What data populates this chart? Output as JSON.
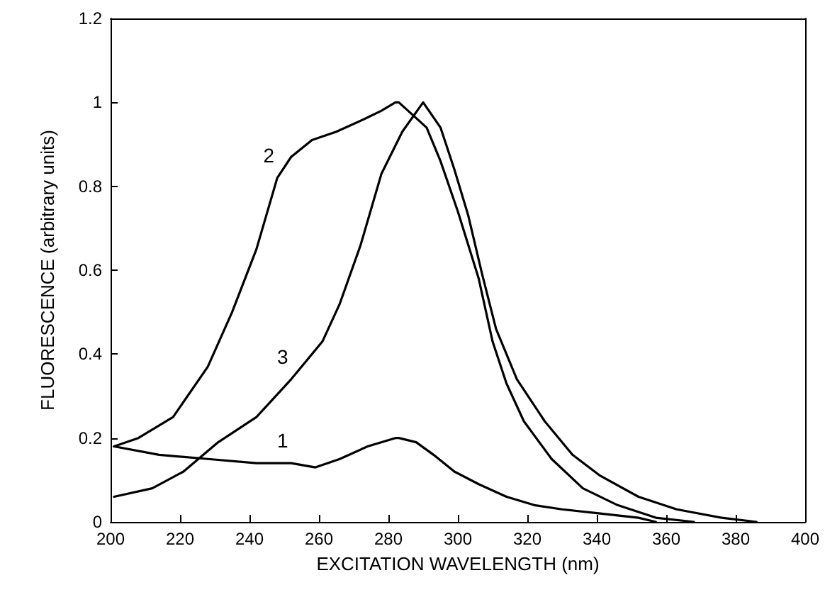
{
  "chart_data": {
    "type": "line",
    "xlabel": "EXCITATION WAVELENGTH (nm)",
    "ylabel": "FLUORESCENCE (arbitrary units)",
    "xlim": [
      200,
      400
    ],
    "xticks": [
      200,
      220,
      240,
      260,
      280,
      300,
      320,
      340,
      360,
      380,
      400
    ],
    "ylim": [
      0,
      1.2
    ],
    "yticks": [
      0,
      0.2,
      0.4,
      0.6,
      0.8,
      1,
      1.2
    ],
    "grid": false,
    "marker": "none",
    "line_style": "solid",
    "series": [
      {
        "name": "1",
        "color": "#000000",
        "x": [
          201,
          214,
          228,
          242,
          252,
          259,
          266,
          274,
          282,
          283,
          288,
          293,
          299,
          306,
          314,
          322,
          330,
          341,
          352,
          357
        ],
        "values": [
          0.18,
          0.16,
          0.15,
          0.14,
          0.14,
          0.13,
          0.15,
          0.18,
          0.2,
          0.2,
          0.19,
          0.16,
          0.12,
          0.09,
          0.06,
          0.04,
          0.03,
          0.02,
          0.01,
          0
        ]
      },
      {
        "name": "2",
        "color": "#000000",
        "x": [
          201,
          208,
          218,
          228,
          235,
          242,
          248,
          252,
          258,
          265,
          273,
          278,
          282,
          283,
          291,
          295,
          300,
          306,
          310,
          314,
          319,
          327,
          336,
          346,
          357,
          368
        ],
        "values": [
          0.18,
          0.2,
          0.25,
          0.37,
          0.5,
          0.65,
          0.82,
          0.87,
          0.91,
          0.93,
          0.96,
          0.98,
          1,
          1,
          0.94,
          0.86,
          0.74,
          0.58,
          0.43,
          0.33,
          0.24,
          0.15,
          0.08,
          0.04,
          0.01,
          0
        ]
      },
      {
        "name": "3",
        "color": "#000000",
        "x": [
          201,
          212,
          221,
          231,
          242,
          252,
          261,
          266,
          272,
          278,
          284,
          290,
          295,
          299,
          303,
          307,
          311,
          317,
          325,
          333,
          341,
          352,
          363,
          376,
          386
        ],
        "values": [
          0.06,
          0.08,
          0.12,
          0.19,
          0.25,
          0.34,
          0.43,
          0.52,
          0.66,
          0.83,
          0.93,
          1,
          0.94,
          0.84,
          0.73,
          0.59,
          0.46,
          0.34,
          0.24,
          0.16,
          0.11,
          0.06,
          0.03,
          0.01,
          0
        ]
      }
    ]
  }
}
